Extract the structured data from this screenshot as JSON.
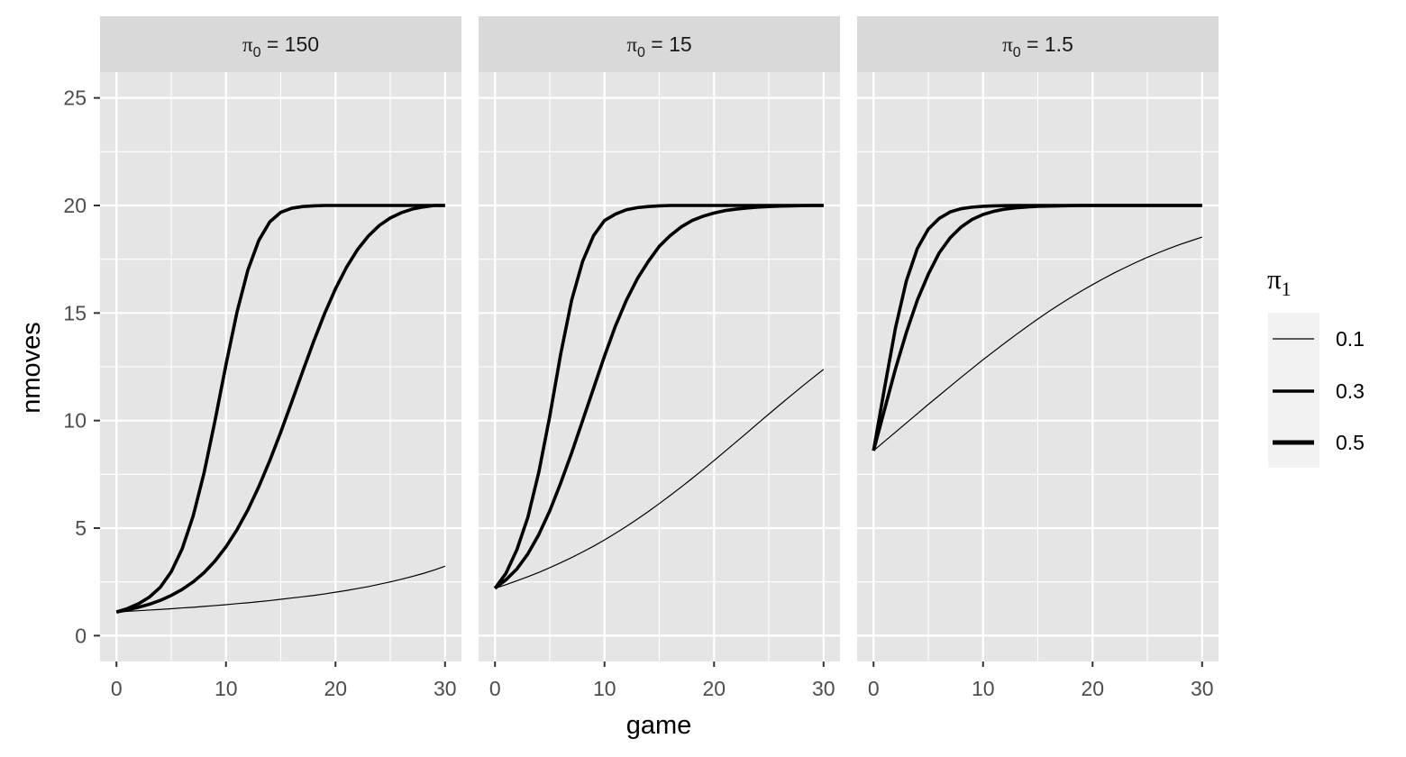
{
  "chart_data": {
    "type": "line",
    "xlabel": "game",
    "ylabel": "nmoves",
    "xlim": [
      -1.5,
      31.5
    ],
    "ylim": [
      -1.2,
      26.2
    ],
    "x_ticks": [
      0,
      10,
      20,
      30
    ],
    "y_ticks": [
      0,
      5,
      10,
      15,
      20,
      25
    ],
    "x_tick_labels": [
      "0",
      "10",
      "20",
      "30"
    ],
    "y_tick_labels": [
      "0",
      "5",
      "10",
      "15",
      "20",
      "25"
    ],
    "grid": true,
    "legend": {
      "title_symbol": "π",
      "title_subscript": "1",
      "placement": "right",
      "entries": [
        {
          "label": "0.1",
          "weight": "thin"
        },
        {
          "label": "0.3",
          "weight": "thick"
        },
        {
          "label": "0.5",
          "weight": "thick"
        }
      ]
    },
    "x": [
      0,
      1,
      2,
      3,
      4,
      5,
      6,
      7,
      8,
      9,
      10,
      11,
      12,
      13,
      14,
      15,
      16,
      17,
      18,
      19,
      20,
      21,
      22,
      23,
      24,
      25,
      26,
      27,
      28,
      29,
      30
    ],
    "panels": [
      {
        "strip_symbol": "π",
        "strip_subscript": "0",
        "strip_rest": " = 150",
        "series": [
          {
            "name": "0.1",
            "values": [
              1.1,
              1.13,
              1.16,
              1.19,
              1.22,
              1.25,
              1.29,
              1.32,
              1.36,
              1.4,
              1.44,
              1.49,
              1.53,
              1.58,
              1.63,
              1.69,
              1.75,
              1.81,
              1.87,
              1.94,
              2.02,
              2.1,
              2.19,
              2.28,
              2.39,
              2.5,
              2.62,
              2.75,
              2.89,
              3.05,
              3.23
            ]
          },
          {
            "name": "0.3",
            "values": [
              1.1,
              1.2,
              1.32,
              1.46,
              1.64,
              1.87,
              2.15,
              2.5,
              2.93,
              3.47,
              4.13,
              4.92,
              5.85,
              6.93,
              8.14,
              9.46,
              10.86,
              12.28,
              13.67,
              14.97,
              16.13,
              17.12,
              17.94,
              18.58,
              19.07,
              19.42,
              19.66,
              19.83,
              19.93,
              20.0,
              20.0
            ]
          },
          {
            "name": "0.5",
            "values": [
              1.1,
              1.26,
              1.48,
              1.79,
              2.25,
              2.97,
              4.04,
              5.56,
              7.57,
              10.0,
              12.6,
              15.03,
              17.0,
              18.38,
              19.24,
              19.68,
              19.87,
              19.95,
              19.98,
              20.0,
              20.0,
              20.0,
              20.0,
              20.0,
              20.0,
              20.0,
              20.0,
              20.0,
              20.0,
              20.0,
              20.0
            ]
          }
        ]
      },
      {
        "strip_symbol": "π",
        "strip_subscript": "0",
        "strip_rest": " = 15",
        "series": [
          {
            "name": "0.1",
            "values": [
              2.2,
              2.37,
              2.55,
              2.74,
              2.94,
              3.16,
              3.39,
              3.63,
              3.89,
              4.16,
              4.45,
              4.76,
              5.08,
              5.42,
              5.77,
              6.14,
              6.52,
              6.91,
              7.31,
              7.72,
              8.14,
              8.57,
              9.0,
              9.43,
              9.87,
              10.3,
              10.73,
              11.15,
              11.57,
              11.98,
              12.38
            ]
          },
          {
            "name": "0.3",
            "values": [
              2.2,
              2.6,
              3.1,
              3.8,
              4.7,
              5.8,
              7.1,
              8.5,
              10.0,
              11.5,
              13.0,
              14.4,
              15.6,
              16.6,
              17.4,
              18.1,
              18.6,
              19.0,
              19.3,
              19.5,
              19.65,
              19.76,
              19.83,
              19.88,
              19.92,
              19.95,
              19.97,
              19.98,
              19.99,
              20.0,
              20.0
            ]
          },
          {
            "name": "0.5",
            "values": [
              2.2,
              2.9,
              4.0,
              5.5,
              7.6,
              10.2,
              13.1,
              15.6,
              17.4,
              18.6,
              19.3,
              19.6,
              19.8,
              19.9,
              19.95,
              19.98,
              20.0,
              20.0,
              20.0,
              20.0,
              20.0,
              20.0,
              20.0,
              20.0,
              20.0,
              20.0,
              20.0,
              20.0,
              20.0,
              20.0,
              20.0
            ]
          }
        ]
      },
      {
        "strip_symbol": "π",
        "strip_subscript": "0",
        "strip_rest": " = 1.5",
        "series": [
          {
            "name": "0.1",
            "values": [
              8.6,
              9.03,
              9.46,
              9.89,
              10.32,
              10.75,
              11.17,
              11.59,
              12.01,
              12.42,
              12.83,
              13.22,
              13.61,
              13.99,
              14.36,
              14.72,
              15.07,
              15.4,
              15.72,
              16.03,
              16.32,
              16.6,
              16.87,
              17.12,
              17.36,
              17.59,
              17.8,
              18.0,
              18.19,
              18.36,
              18.53
            ]
          },
          {
            "name": "0.3",
            "values": [
              8.6,
              10.5,
              12.4,
              14.1,
              15.6,
              16.8,
              17.8,
              18.5,
              19.0,
              19.35,
              19.58,
              19.73,
              19.83,
              19.89,
              19.93,
              19.96,
              19.97,
              19.98,
              19.99,
              20.0,
              20.0,
              20.0,
              20.0,
              20.0,
              20.0,
              20.0,
              20.0,
              20.0,
              20.0,
              20.0,
              20.0
            ]
          },
          {
            "name": "0.5",
            "values": [
              8.6,
              11.5,
              14.3,
              16.5,
              18.0,
              18.9,
              19.4,
              19.7,
              19.85,
              19.92,
              19.96,
              19.98,
              19.99,
              20.0,
              20.0,
              20.0,
              20.0,
              20.0,
              20.0,
              20.0,
              20.0,
              20.0,
              20.0,
              20.0,
              20.0,
              20.0,
              20.0,
              20.0,
              20.0,
              20.0,
              20.0
            ]
          }
        ]
      }
    ]
  }
}
